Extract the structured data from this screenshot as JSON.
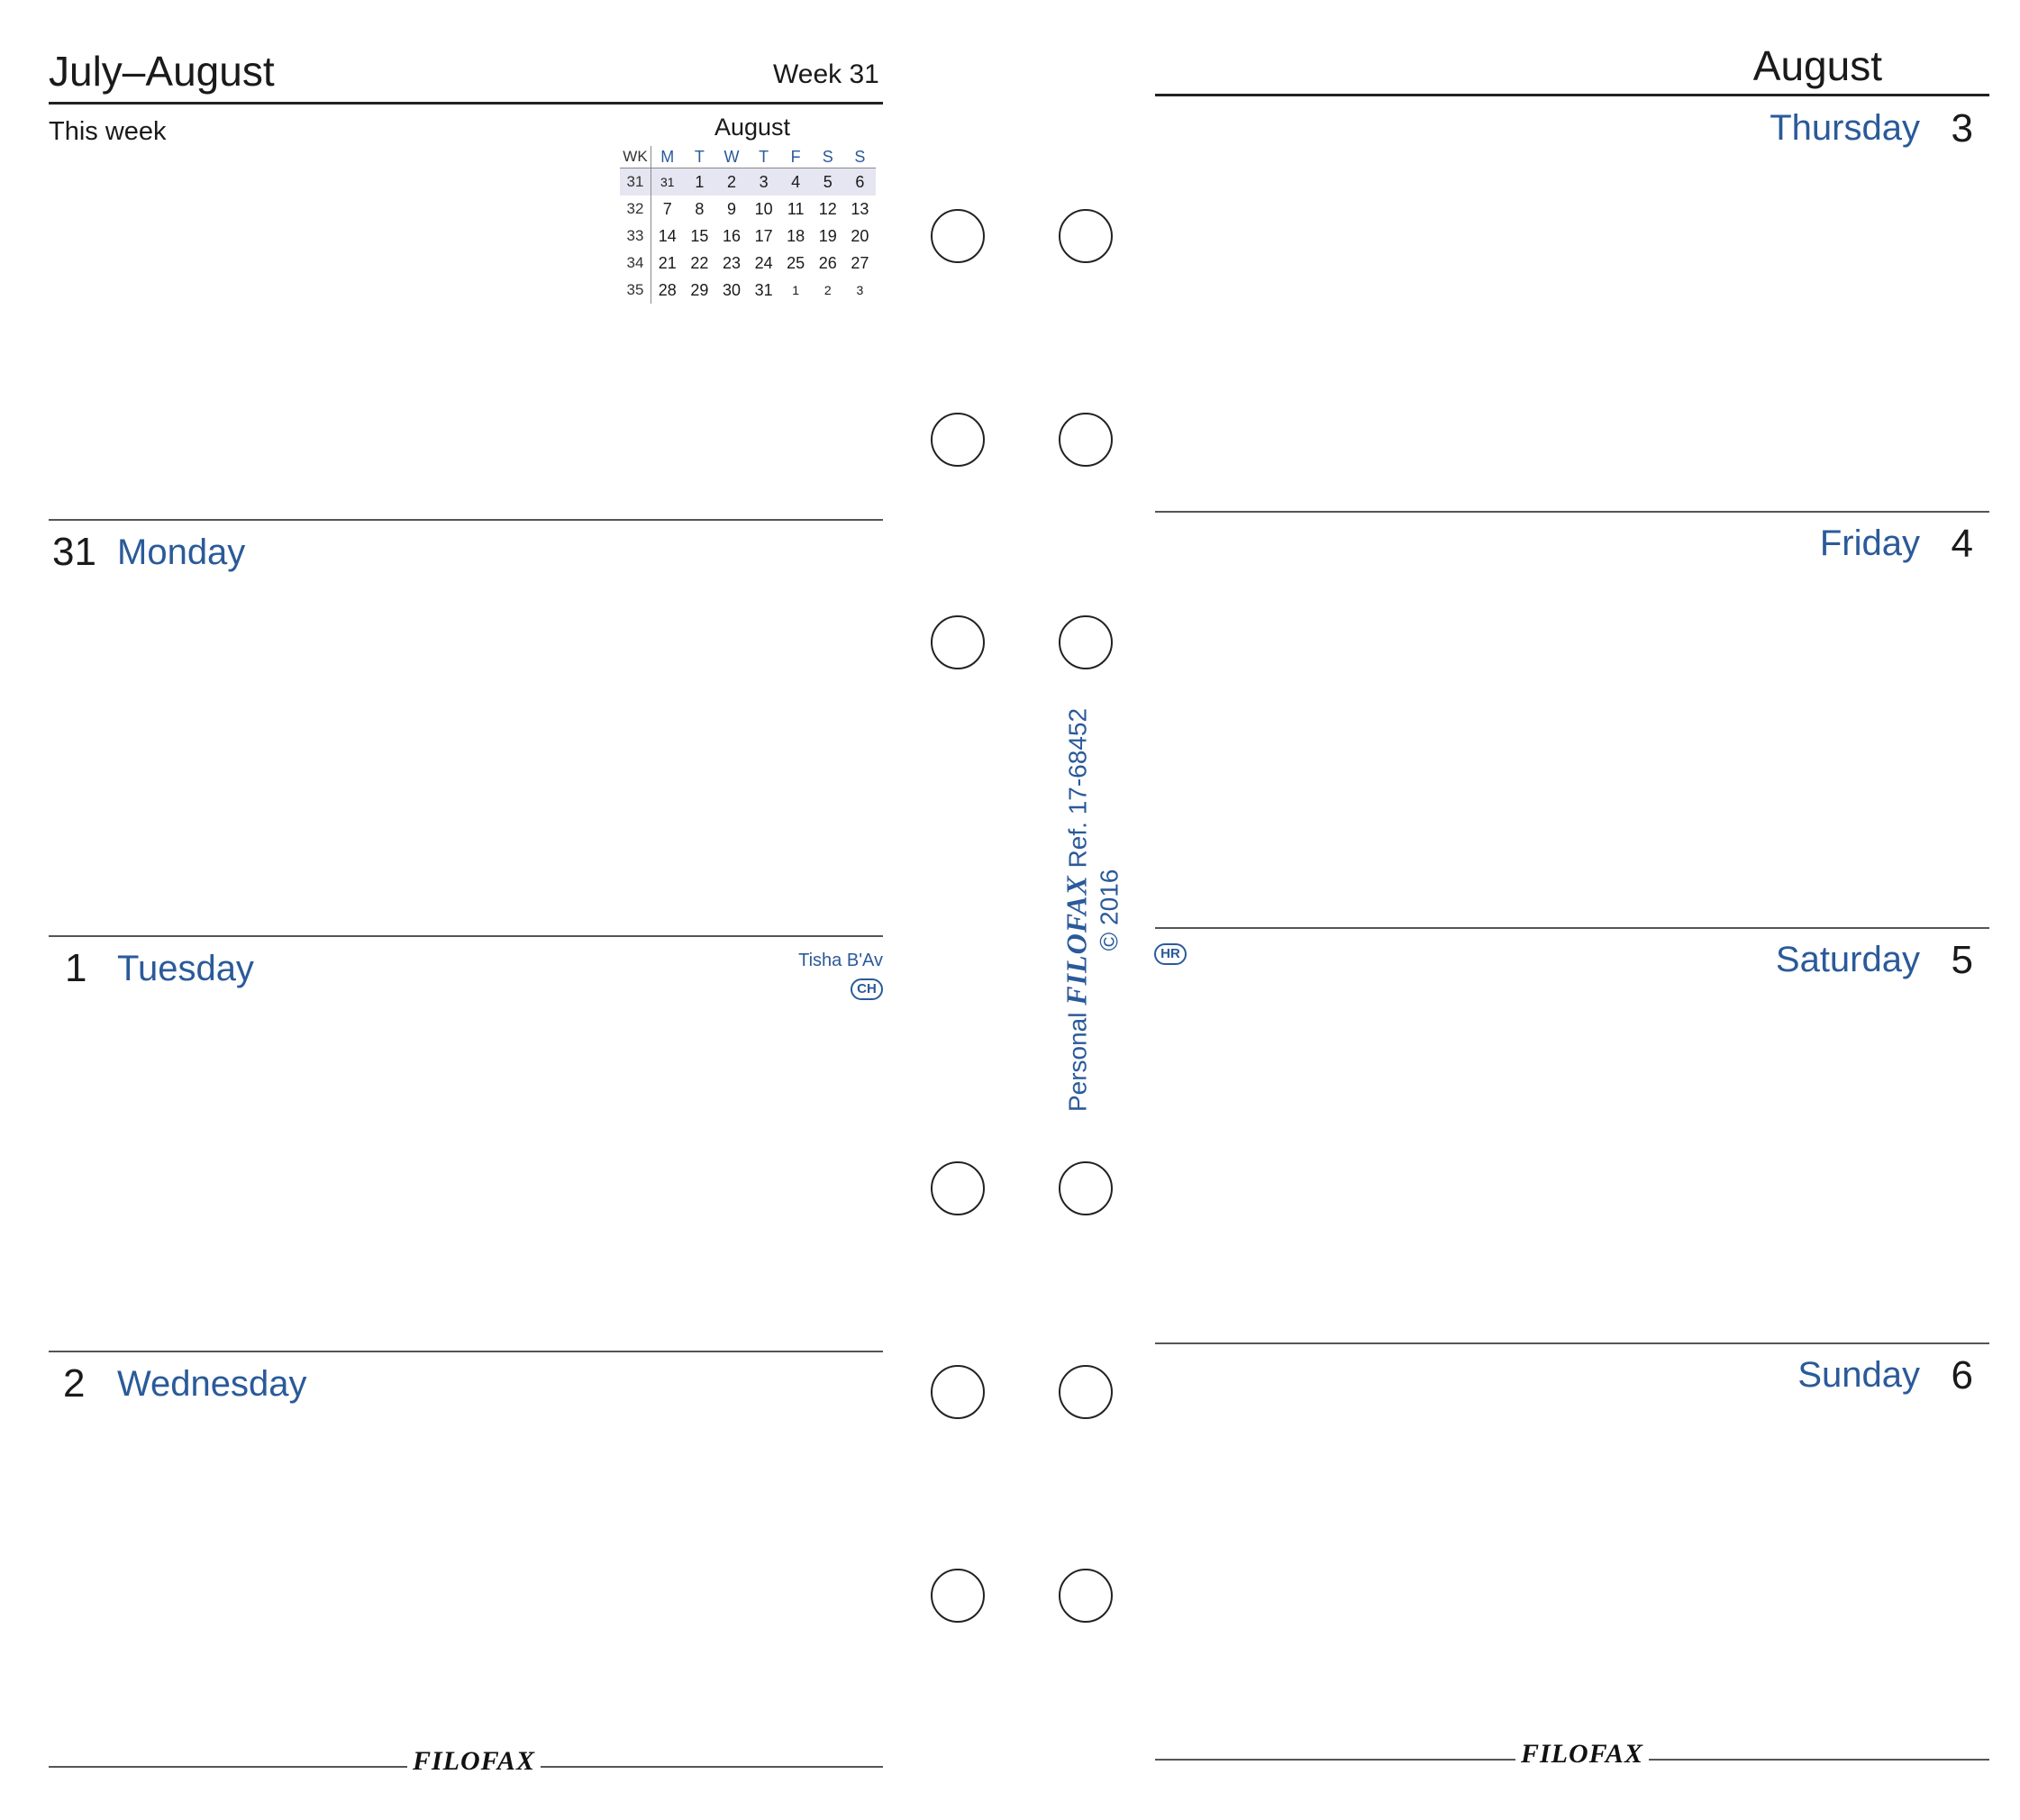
{
  "left_page": {
    "title": "July–August",
    "week_label": "Week 31",
    "this_week_label": "This week",
    "days": [
      {
        "num": "31",
        "name": "Monday"
      },
      {
        "num": "1",
        "name": "Tuesday",
        "note": "Tisha B'Av",
        "badge": "CH"
      },
      {
        "num": "2",
        "name": "Wednesday"
      }
    ],
    "footer_logo": "FILOFAX"
  },
  "mini_calendar": {
    "month": "August",
    "headers": [
      "WK",
      "M",
      "T",
      "W",
      "T",
      "F",
      "S",
      "S"
    ],
    "rows": [
      [
        "31",
        "31",
        "1",
        "2",
        "3",
        "4",
        "5",
        "6"
      ],
      [
        "32",
        "7",
        "8",
        "9",
        "10",
        "11",
        "12",
        "13"
      ],
      [
        "33",
        "14",
        "15",
        "16",
        "17",
        "18",
        "19",
        "20"
      ],
      [
        "34",
        "21",
        "22",
        "23",
        "24",
        "25",
        "26",
        "27"
      ],
      [
        "35",
        "28",
        "29",
        "30",
        "31",
        "1",
        "2",
        "3"
      ]
    ]
  },
  "right_page": {
    "title": "August",
    "days": [
      {
        "num": "3",
        "name": "Thursday"
      },
      {
        "num": "4",
        "name": "Friday"
      },
      {
        "num": "5",
        "name": "Saturday",
        "badge": "HR"
      },
      {
        "num": "6",
        "name": "Sunday"
      }
    ],
    "footer_logo": "FILOFAX"
  },
  "spine": {
    "size_label": "Personal",
    "brand": "FILOFAX",
    "ref": "Ref. 17-68452",
    "copyright": "© 2016"
  },
  "colors": {
    "accent": "#2a5a9a",
    "text": "#1a1a1a",
    "rule": "#555555",
    "current_week_bg": "#e6e6f2"
  }
}
